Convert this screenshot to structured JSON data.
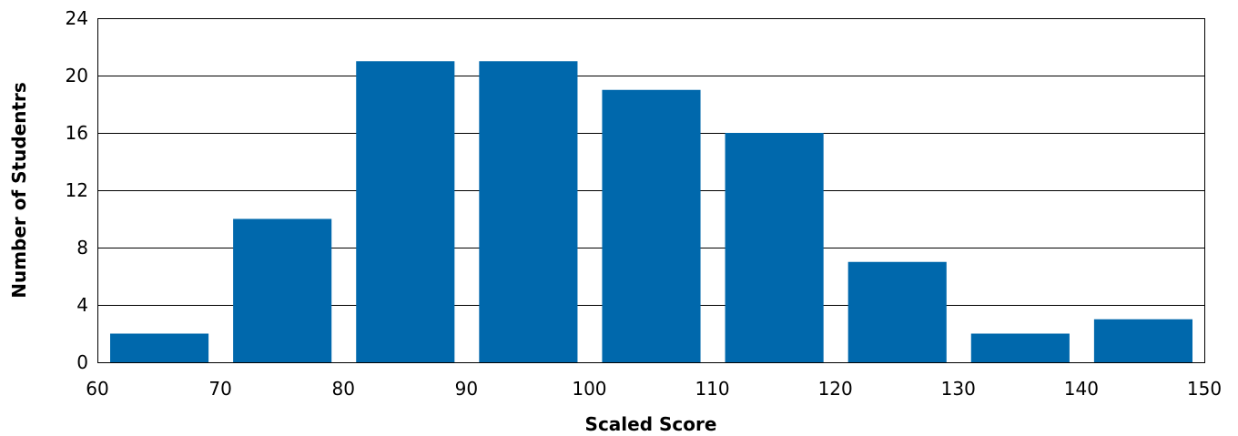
{
  "chart_data": {
    "type": "bar",
    "xlabel": "Scaled Score",
    "ylabel": "Number of Studentrs",
    "xlim": [
      60,
      150
    ],
    "ylim": [
      0,
      24
    ],
    "x_ticks": [
      60,
      70,
      80,
      90,
      100,
      110,
      120,
      130,
      140,
      150
    ],
    "y_ticks": [
      0,
      4,
      8,
      12,
      16,
      20,
      24
    ],
    "bins": [
      {
        "from": 60,
        "to": 70,
        "value": 2
      },
      {
        "from": 70,
        "to": 80,
        "value": 10
      },
      {
        "from": 80,
        "to": 90,
        "value": 21
      },
      {
        "from": 90,
        "to": 100,
        "value": 21
      },
      {
        "from": 100,
        "to": 110,
        "value": 19
      },
      {
        "from": 110,
        "to": 120,
        "value": 16
      },
      {
        "from": 120,
        "to": 130,
        "value": 7
      },
      {
        "from": 130,
        "to": 140,
        "value": 2
      },
      {
        "from": 140,
        "to": 150,
        "value": 3
      }
    ],
    "grid": true,
    "legend": "none",
    "bar_color": "#0068AC"
  }
}
